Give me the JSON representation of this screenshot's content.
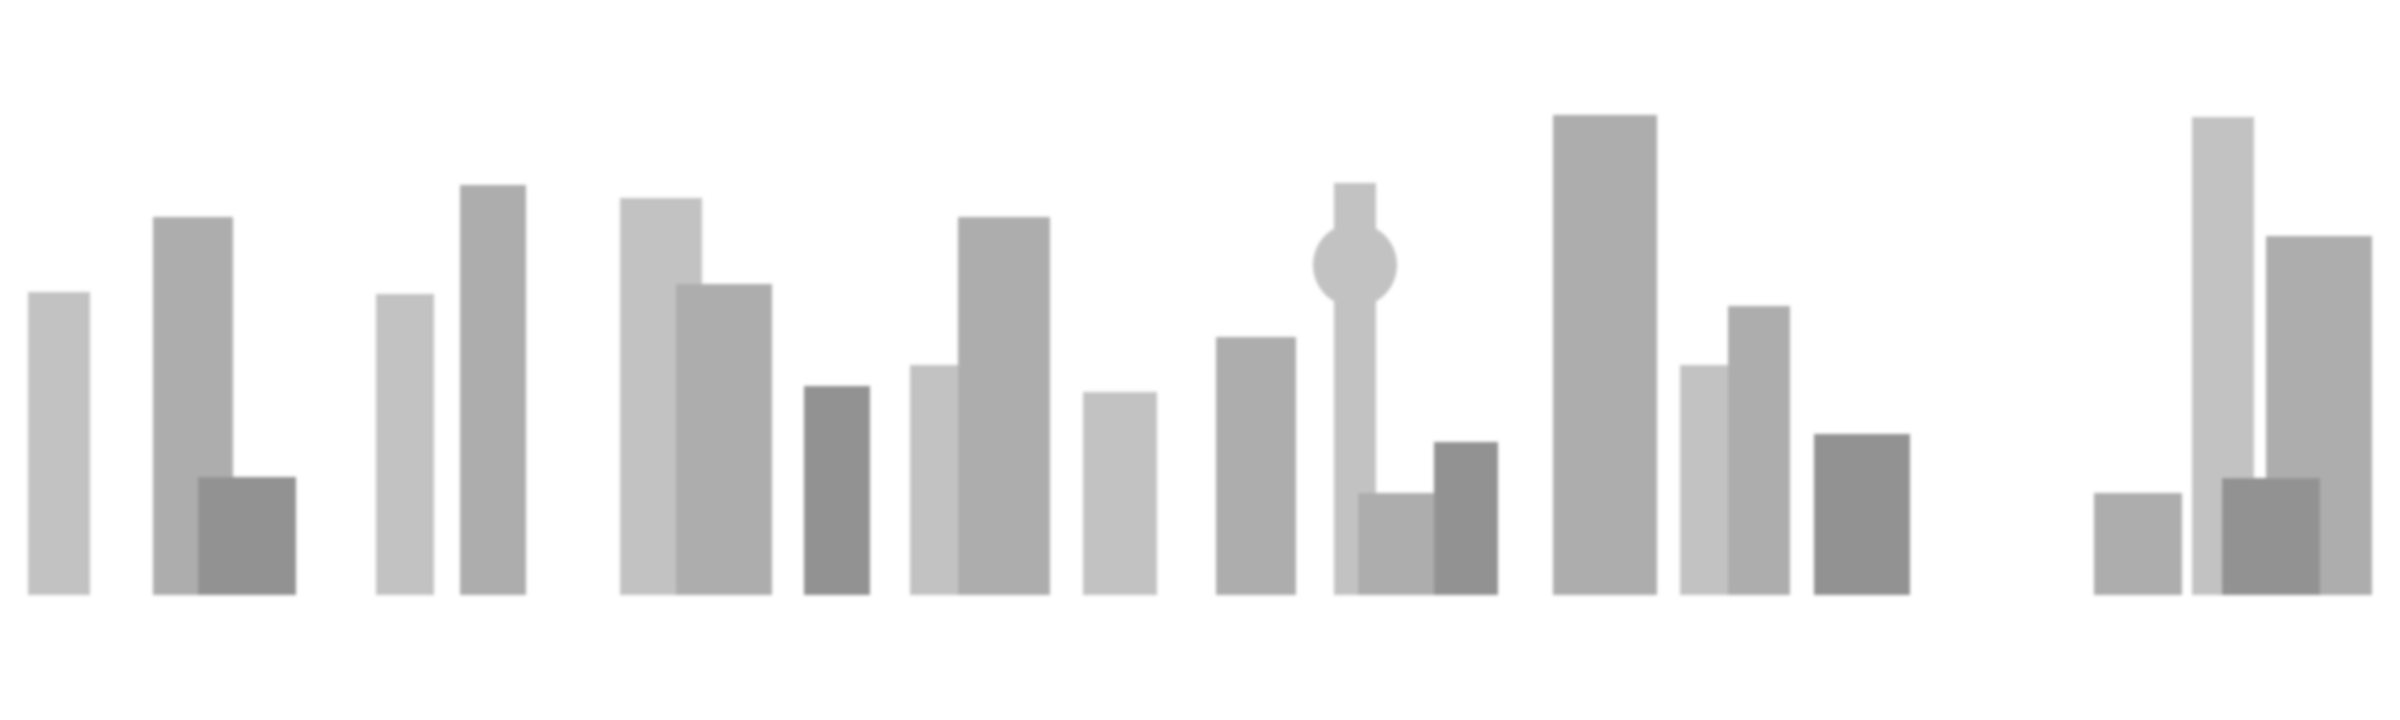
{
  "illustration": {
    "subject": "city-skyline",
    "colors": {
      "light": "#c2c2c2",
      "mid": "#adadad",
      "dark": "#929292",
      "background": "#ffffff"
    },
    "buildings": [
      {
        "name": "building-1",
        "tone": "light"
      },
      {
        "name": "building-2",
        "tone": "mid"
      },
      {
        "name": "building-3",
        "tone": "dark"
      },
      {
        "name": "building-4",
        "tone": "light"
      },
      {
        "name": "building-5",
        "tone": "mid"
      },
      {
        "name": "building-6",
        "tone": "light"
      },
      {
        "name": "building-7",
        "tone": "mid"
      },
      {
        "name": "building-8",
        "tone": "dark"
      },
      {
        "name": "building-9",
        "tone": "light"
      },
      {
        "name": "building-10",
        "tone": "mid"
      },
      {
        "name": "building-11",
        "tone": "light"
      },
      {
        "name": "building-12",
        "tone": "mid"
      },
      {
        "name": "tv-tower",
        "tone": "light"
      },
      {
        "name": "building-13",
        "tone": "mid"
      },
      {
        "name": "building-14",
        "tone": "dark"
      },
      {
        "name": "building-15",
        "tone": "mid"
      },
      {
        "name": "building-16",
        "tone": "light"
      },
      {
        "name": "building-17",
        "tone": "mid"
      },
      {
        "name": "building-18",
        "tone": "dark"
      },
      {
        "name": "building-19",
        "tone": "mid"
      },
      {
        "name": "building-20",
        "tone": "light"
      },
      {
        "name": "building-21",
        "tone": "mid"
      },
      {
        "name": "building-22",
        "tone": "dark"
      }
    ]
  }
}
